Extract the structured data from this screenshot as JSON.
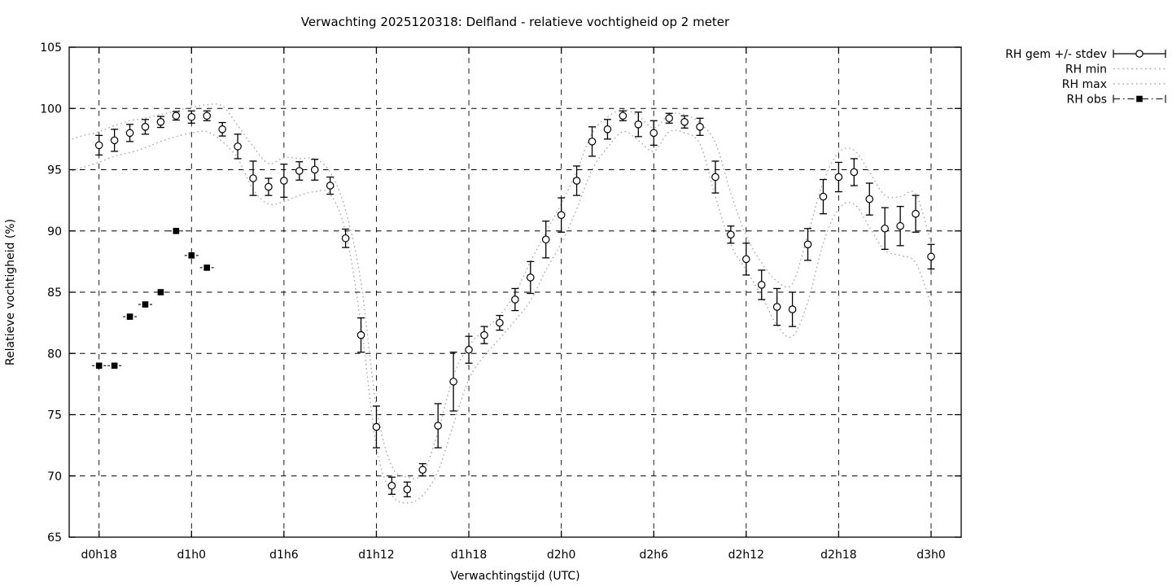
{
  "title": "Verwachting 2025120318: Delfland - relatieve vochtigheid op 2 meter",
  "x_axis": {
    "label": "Verwachtingstijd (UTC)",
    "major_ticks": [
      "d0h18",
      "d1h0",
      "d1h6",
      "d1h12",
      "d1h18",
      "d2h0",
      "d2h6",
      "d2h12",
      "d2h18",
      "d3h0"
    ]
  },
  "y_axis": {
    "label": "Relatieve vochtigheid (%)",
    "ticks": [
      65,
      70,
      75,
      80,
      85,
      90,
      95,
      100,
      105
    ]
  },
  "legend": {
    "items": [
      {
        "label": "RH gem +/- stdev",
        "glyph": "errorbar-open-circle"
      },
      {
        "label": "RH min",
        "glyph": "dotted-line"
      },
      {
        "label": "RH max",
        "glyph": "dotted-line"
      },
      {
        "label": "RH obs",
        "glyph": "dashdot-filled-square"
      }
    ]
  },
  "colors": {
    "foreground": "#000000",
    "background": "#ffffff",
    "minmax_line": "#a6a6a6"
  },
  "chart_data": {
    "type": "line",
    "title": "Verwachting 2025120318: Delfland - relatieve vochtigheid op 2 meter",
    "xlabel": "Verwachtingstijd (UTC)",
    "ylabel": "Relatieve vochtigheid (%)",
    "ylim": [
      65,
      105
    ],
    "ytick_step": 5,
    "grid": true,
    "legend_position": "outside-top-right",
    "x_major_labels": [
      "d0h18",
      "d1h0",
      "d1h6",
      "d1h12",
      "d1h18",
      "d2h0",
      "d2h6",
      "d2h12",
      "d2h18",
      "d3h0"
    ],
    "series": [
      {
        "name": "RH gem +/- stdev",
        "style": "points-with-errorbars",
        "marker": "open-circle",
        "color": "#000000",
        "hours": [
          "d0h18",
          "d0h19",
          "d0h20",
          "d0h21",
          "d0h22",
          "d0h23",
          "d1h0",
          "d1h1",
          "d1h2",
          "d1h3",
          "d1h4",
          "d1h5",
          "d1h6",
          "d1h7",
          "d1h8",
          "d1h9",
          "d1h10",
          "d1h11",
          "d1h12",
          "d1h13",
          "d1h14",
          "d1h15",
          "d1h16",
          "d1h17",
          "d1h18",
          "d1h19",
          "d1h20",
          "d1h21",
          "d1h22",
          "d1h23",
          "d2h0",
          "d2h1",
          "d2h2",
          "d2h3",
          "d2h4",
          "d2h5",
          "d2h6",
          "d2h7",
          "d2h8",
          "d2h9",
          "d2h10",
          "d2h11",
          "d2h12",
          "d2h13",
          "d2h14",
          "d2h15",
          "d2h16",
          "d2h17",
          "d2h18",
          "d2h19",
          "d2h20",
          "d2h21",
          "d2h22",
          "d2h23",
          "d3h0"
        ],
        "values": [
          97.0,
          97.4,
          98.0,
          98.5,
          98.9,
          99.4,
          99.3,
          99.4,
          98.3,
          96.9,
          94.3,
          93.6,
          94.1,
          94.9,
          95.0,
          93.7,
          89.4,
          81.5,
          74.0,
          69.2,
          68.9,
          70.5,
          74.1,
          77.7,
          80.3,
          81.5,
          82.5,
          84.4,
          86.2,
          89.3,
          91.3,
          94.1,
          97.3,
          98.3,
          99.4,
          98.7,
          98.0,
          99.2,
          98.9,
          98.5,
          94.4,
          89.7,
          87.7,
          85.6,
          83.8,
          83.6,
          88.9,
          92.8,
          94.4,
          94.8,
          92.6,
          90.2,
          90.4,
          91.4,
          87.9
        ],
        "stdev": [
          0.8,
          0.9,
          0.7,
          0.6,
          0.45,
          0.35,
          0.5,
          0.4,
          0.55,
          1.0,
          1.4,
          0.7,
          1.35,
          0.75,
          0.85,
          0.7,
          0.75,
          1.4,
          1.7,
          0.7,
          0.6,
          0.5,
          1.8,
          2.4,
          1.1,
          0.7,
          0.6,
          0.9,
          1.3,
          1.5,
          1.4,
          1.2,
          1.2,
          0.8,
          0.4,
          1.0,
          1.0,
          0.4,
          0.5,
          0.7,
          1.3,
          0.7,
          1.3,
          1.2,
          1.5,
          1.4,
          1.3,
          1.4,
          1.2,
          1.1,
          1.3,
          1.7,
          1.6,
          1.5,
          1.0
        ]
      },
      {
        "name": "RH min",
        "style": "dotted-smooth",
        "color": "#a6a6a6",
        "hours": [
          "d0h16",
          "d0h17",
          "d0h18",
          "d0h19",
          "d0h20",
          "d0h21",
          "d0h22",
          "d0h23",
          "d1h0",
          "d1h1",
          "d1h2",
          "d1h3",
          "d1h4",
          "d1h5",
          "d1h6",
          "d1h7",
          "d1h8",
          "d1h9",
          "d1h10",
          "d1h11",
          "d1h12",
          "d1h13",
          "d1h14",
          "d1h15",
          "d1h16",
          "d1h17",
          "d1h18",
          "d1h19",
          "d1h20",
          "d1h21",
          "d1h22",
          "d1h23",
          "d2h0",
          "d2h1",
          "d2h2",
          "d2h3",
          "d2h4",
          "d2h5",
          "d2h6",
          "d2h7",
          "d2h8",
          "d2h9",
          "d2h10",
          "d2h11",
          "d2h12",
          "d2h13",
          "d2h14",
          "d2h15",
          "d2h16",
          "d2h17",
          "d2h18",
          "d2h19",
          "d2h20",
          "d2h21",
          "d2h22",
          "d2h23",
          "d3h0"
        ],
        "values": [
          94.8,
          95.2,
          95.6,
          96.1,
          96.4,
          96.8,
          97.3,
          97.7,
          98.0,
          98.1,
          97.3,
          95.9,
          93.4,
          92.2,
          92.4,
          92.9,
          93.2,
          93.0,
          89.9,
          82.4,
          72.4,
          68.5,
          67.8,
          68.4,
          70.4,
          74.2,
          77.9,
          79.8,
          81.2,
          82.7,
          84.3,
          86.8,
          89.0,
          91.8,
          95.0,
          96.8,
          98.1,
          97.4,
          96.5,
          98.1,
          98.0,
          97.1,
          92.8,
          88.9,
          86.8,
          84.7,
          82.3,
          81.4,
          84.2,
          89.0,
          91.8,
          92.2,
          90.3,
          88.4,
          88.0,
          87.4,
          84.0
        ]
      },
      {
        "name": "RH max",
        "style": "dotted-smooth",
        "color": "#a6a6a6",
        "hours": [
          "d0h16",
          "d0h17",
          "d0h18",
          "d0h19",
          "d0h20",
          "d0h21",
          "d0h22",
          "d0h23",
          "d1h0",
          "d1h1",
          "d1h2",
          "d1h3",
          "d1h4",
          "d1h5",
          "d1h6",
          "d1h7",
          "d1h8",
          "d1h9",
          "d1h10",
          "d1h11",
          "d1h12",
          "d1h13",
          "d1h14",
          "d1h15",
          "d1h16",
          "d1h17",
          "d1h18",
          "d1h19",
          "d1h20",
          "d1h21",
          "d1h22",
          "d1h23",
          "d2h0",
          "d2h1",
          "d2h2",
          "d2h3",
          "d2h4",
          "d2h5",
          "d2h6",
          "d2h7",
          "d2h8",
          "d2h9",
          "d2h10",
          "d2h11",
          "d2h12",
          "d2h13",
          "d2h14",
          "d2h15",
          "d2h16",
          "d2h17",
          "d2h18",
          "d2h19",
          "d2h20",
          "d2h21",
          "d2h22",
          "d2h23",
          "d3h0"
        ],
        "values": [
          97.4,
          97.8,
          98.1,
          98.6,
          99.0,
          99.2,
          99.5,
          99.8,
          100.1,
          100.3,
          100.2,
          98.6,
          96.9,
          95.5,
          96.0,
          95.9,
          95.9,
          94.8,
          91.7,
          85.8,
          75.6,
          70.8,
          69.9,
          70.2,
          73.6,
          78.2,
          80.6,
          81.9,
          83.1,
          84.9,
          87.5,
          89.9,
          92.2,
          94.9,
          98.0,
          99.3,
          99.9,
          99.4,
          98.4,
          99.5,
          99.5,
          98.8,
          97.2,
          93.1,
          89.6,
          87.4,
          85.9,
          85.7,
          89.7,
          94.0,
          96.4,
          96.6,
          94.8,
          92.9,
          92.8,
          93.0,
          89.0
        ]
      },
      {
        "name": "RH obs",
        "style": "filled-square-dashdot",
        "color": "#000000",
        "hours": [
          "d0h18",
          "d0h19",
          "d0h20",
          "d0h21",
          "d0h22",
          "d0h23",
          "d1h0",
          "d1h1"
        ],
        "values": [
          79,
          79,
          83,
          84,
          85,
          90,
          88,
          87
        ]
      }
    ]
  }
}
